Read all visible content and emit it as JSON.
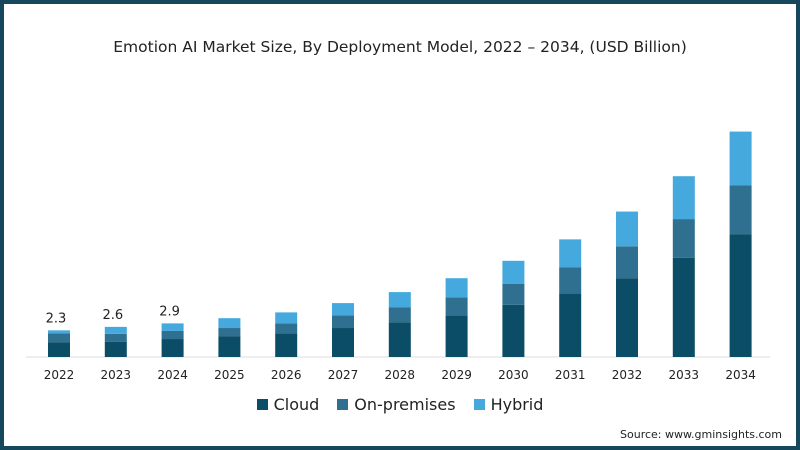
{
  "chart_data": {
    "type": "bar",
    "stacked": true,
    "title": "Emotion AI Market Size, By Deployment Model, 2022 – 2034, (USD Billion)",
    "xlabel": "",
    "ylabel": "",
    "categories": [
      "2022",
      "2023",
      "2024",
      "2025",
      "2026",
      "2027",
      "2028",
      "2029",
      "2030",
      "2031",
      "2032",
      "2033",
      "2034"
    ],
    "series": [
      {
        "name": "Cloud",
        "color": "#0b4d66",
        "values": [
          1.28,
          1.3,
          1.55,
          1.8,
          2.05,
          2.5,
          3.0,
          3.6,
          4.5,
          5.5,
          6.8,
          8.55,
          10.6
        ]
      },
      {
        "name": "On-premises",
        "color": "#2f6f8f",
        "values": [
          0.77,
          0.7,
          0.7,
          0.7,
          0.85,
          1.1,
          1.3,
          1.55,
          1.8,
          2.25,
          2.75,
          3.35,
          4.2
        ]
      },
      {
        "name": "Hybrid",
        "color": "#45a9dd",
        "values": [
          0.25,
          0.6,
          0.65,
          0.85,
          0.95,
          1.05,
          1.3,
          1.65,
          2.0,
          2.4,
          3.0,
          3.7,
          4.65
        ]
      }
    ],
    "data_labels": {
      "2022": "2.3",
      "2023": "2.6",
      "2024": "2.9"
    },
    "ylim": [
      0,
      19.5
    ],
    "grid": false,
    "legend": "bottom"
  },
  "source": "Source: www.gminsights.com",
  "frame_color": "#14485a"
}
